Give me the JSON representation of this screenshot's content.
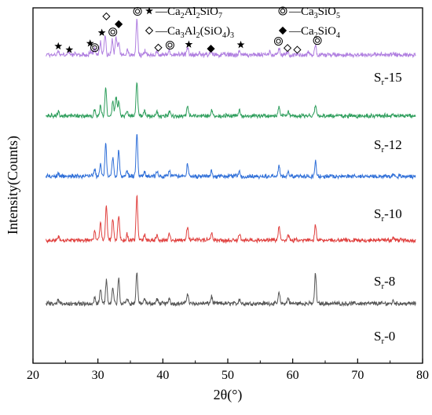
{
  "chart_data": {
    "type": "line",
    "xlabel": "2θ(°)",
    "ylabel": "Intensity(Counts)",
    "xlim": [
      20,
      80
    ],
    "x_ticks": [
      "20",
      "30",
      "40",
      "50",
      "60",
      "70",
      "80"
    ],
    "grid": false,
    "series": [
      {
        "name": "Sr-15",
        "label_main": "S",
        "label_sub": "r",
        "label_tail": "-15",
        "color": "#b07fe0",
        "baseline": 0.868,
        "noise": 0.01,
        "peaks": [
          [
            23.9,
            0.01
          ],
          [
            25.5,
            0.008
          ],
          [
            28.9,
            0.012
          ],
          [
            29.5,
            0.018
          ],
          [
            30.4,
            0.035
          ],
          [
            31.1,
            0.058
          ],
          [
            32.2,
            0.045
          ],
          [
            32.8,
            0.05
          ],
          [
            33.2,
            0.04
          ],
          [
            34.5,
            0.012
          ],
          [
            36.0,
            0.1
          ],
          [
            37.2,
            0.01
          ],
          [
            39.1,
            0.01
          ],
          [
            41.0,
            0.012
          ],
          [
            43.8,
            0.018
          ],
          [
            45.6,
            0.008
          ],
          [
            47.5,
            0.01
          ],
          [
            51.8,
            0.012
          ],
          [
            56.5,
            0.01
          ],
          [
            57.9,
            0.018
          ],
          [
            59.3,
            0.01
          ],
          [
            62.4,
            0.008
          ],
          [
            63.5,
            0.028
          ],
          [
            75.5,
            0.006
          ]
        ]
      },
      {
        "name": "Sr-12",
        "label_main": "S",
        "label_sub": "r",
        "label_tail": "-12",
        "color": "#2e9e5c",
        "baseline": 0.696,
        "noise": 0.009,
        "peaks": [
          [
            23.9,
            0.01
          ],
          [
            29.5,
            0.015
          ],
          [
            30.4,
            0.03
          ],
          [
            31.2,
            0.08
          ],
          [
            32.3,
            0.045
          ],
          [
            32.8,
            0.055
          ],
          [
            33.2,
            0.04
          ],
          [
            34.5,
            0.012
          ],
          [
            36.0,
            0.095
          ],
          [
            37.2,
            0.012
          ],
          [
            39.1,
            0.012
          ],
          [
            41.0,
            0.014
          ],
          [
            43.8,
            0.03
          ],
          [
            47.5,
            0.016
          ],
          [
            51.8,
            0.014
          ],
          [
            57.9,
            0.025
          ],
          [
            59.3,
            0.012
          ],
          [
            63.5,
            0.032
          ],
          [
            75.5,
            0.006
          ]
        ]
      },
      {
        "name": "Sr-10",
        "label_main": "S",
        "label_sub": "r",
        "label_tail": "-10",
        "color": "#2f6fd8",
        "baseline": 0.526,
        "noise": 0.009,
        "peaks": [
          [
            23.9,
            0.01
          ],
          [
            29.5,
            0.02
          ],
          [
            30.4,
            0.035
          ],
          [
            31.2,
            0.09
          ],
          [
            32.3,
            0.05
          ],
          [
            33.2,
            0.075
          ],
          [
            34.5,
            0.015
          ],
          [
            36.0,
            0.12
          ],
          [
            37.2,
            0.014
          ],
          [
            39.1,
            0.012
          ],
          [
            41.0,
            0.016
          ],
          [
            43.8,
            0.035
          ],
          [
            47.5,
            0.018
          ],
          [
            51.8,
            0.016
          ],
          [
            57.9,
            0.03
          ],
          [
            59.3,
            0.014
          ],
          [
            63.5,
            0.04
          ],
          [
            75.5,
            0.006
          ]
        ]
      },
      {
        "name": "Sr-8",
        "label_main": "S",
        "label_sub": "r",
        "label_tail": "-8",
        "color": "#e0413f",
        "baseline": 0.346,
        "noise": 0.009,
        "peaks": [
          [
            23.9,
            0.012
          ],
          [
            29.5,
            0.025
          ],
          [
            30.4,
            0.05
          ],
          [
            31.3,
            0.1
          ],
          [
            32.3,
            0.06
          ],
          [
            33.2,
            0.07
          ],
          [
            34.5,
            0.018
          ],
          [
            36.0,
            0.125
          ],
          [
            37.2,
            0.016
          ],
          [
            39.1,
            0.014
          ],
          [
            41.0,
            0.018
          ],
          [
            43.8,
            0.04
          ],
          [
            47.5,
            0.02
          ],
          [
            51.8,
            0.016
          ],
          [
            57.9,
            0.04
          ],
          [
            59.3,
            0.016
          ],
          [
            63.5,
            0.045
          ],
          [
            75.5,
            0.008
          ]
        ]
      },
      {
        "name": "Sr-0",
        "label_main": "S",
        "label_sub": "r",
        "label_tail": "-0",
        "color": "#555555",
        "baseline": 0.168,
        "noise": 0.009,
        "peaks": [
          [
            23.9,
            0.01
          ],
          [
            29.5,
            0.018
          ],
          [
            30.4,
            0.04
          ],
          [
            31.3,
            0.065
          ],
          [
            32.3,
            0.045
          ],
          [
            33.2,
            0.075
          ],
          [
            34.5,
            0.015
          ],
          [
            36.0,
            0.09
          ],
          [
            37.2,
            0.012
          ],
          [
            39.1,
            0.012
          ],
          [
            41.0,
            0.016
          ],
          [
            43.8,
            0.03
          ],
          [
            47.5,
            0.02
          ],
          [
            51.8,
            0.014
          ],
          [
            57.9,
            0.03
          ],
          [
            59.3,
            0.016
          ],
          [
            63.5,
            0.085
          ],
          [
            75.5,
            0.008
          ]
        ]
      }
    ],
    "markers": [
      {
        "type": "star",
        "x": 23.9,
        "y": 0.892
      },
      {
        "type": "star",
        "x": 25.6,
        "y": 0.882
      },
      {
        "type": "star",
        "x": 28.8,
        "y": 0.9
      },
      {
        "type": "circle",
        "x": 29.5,
        "y": 0.888
      },
      {
        "type": "star",
        "x": 30.6,
        "y": 0.93
      },
      {
        "type": "diamond-open",
        "x": 31.3,
        "y": 0.976
      },
      {
        "type": "circle",
        "x": 32.3,
        "y": 0.932
      },
      {
        "type": "diamond-filled",
        "x": 33.2,
        "y": 0.954
      },
      {
        "type": "circle",
        "x": 36.1,
        "y": 0.99
      },
      {
        "type": "diamond-open",
        "x": 39.3,
        "y": 0.888
      },
      {
        "type": "circle",
        "x": 41.1,
        "y": 0.895
      },
      {
        "type": "star",
        "x": 44.0,
        "y": 0.897
      },
      {
        "type": "diamond-filled",
        "x": 47.4,
        "y": 0.885
      },
      {
        "type": "star",
        "x": 52.0,
        "y": 0.896
      },
      {
        "type": "circle",
        "x": 57.8,
        "y": 0.906
      },
      {
        "type": "diamond-open",
        "x": 59.2,
        "y": 0.887
      },
      {
        "type": "diamond-open",
        "x": 60.7,
        "y": 0.882
      },
      {
        "type": "circle",
        "x": 63.8,
        "y": 0.908
      }
    ],
    "legend": [
      {
        "marker": "star",
        "prefix": "—Ca",
        "parts": [
          [
            "2",
            "sub"
          ],
          [
            "Al",
            "n"
          ],
          [
            "2",
            "sub"
          ],
          [
            "SiO",
            "n"
          ],
          [
            "7",
            "sub"
          ]
        ]
      },
      {
        "marker": "circle",
        "prefix": "—Ca",
        "parts": [
          [
            "3",
            "sub"
          ],
          [
            "SiO",
            "n"
          ],
          [
            "5",
            "sub"
          ]
        ]
      },
      {
        "marker": "diamond-open",
        "prefix": "—Ca",
        "parts": [
          [
            "3",
            "sub"
          ],
          [
            "Al",
            "n"
          ],
          [
            "2",
            "sub"
          ],
          [
            "(SiO",
            "n"
          ],
          [
            "4",
            "sub"
          ],
          [
            ")",
            "n"
          ],
          [
            "3",
            "sub"
          ]
        ]
      },
      {
        "marker": "diamond-filled",
        "prefix": "—Ca",
        "parts": [
          [
            "2",
            "sub"
          ],
          [
            "SiO",
            "n"
          ],
          [
            "4",
            "sub"
          ]
        ]
      }
    ],
    "legend_placement": "top-center"
  }
}
